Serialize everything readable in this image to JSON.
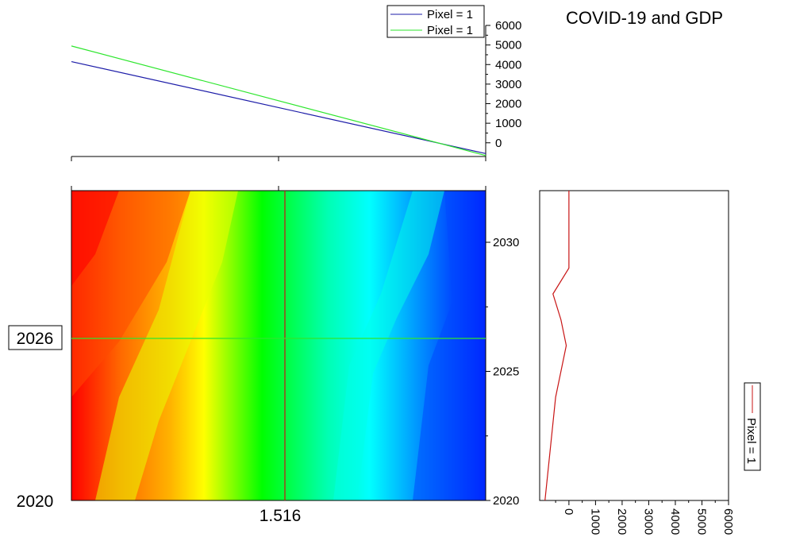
{
  "title": "COVID-19 and GDP",
  "colors": {
    "series1": "#1c1ca8",
    "series2": "#2ee62e",
    "vertical_cursor": "#c81414",
    "horizontal_cursor": "#2ee62e",
    "heatmap_scale": [
      "#ff0000",
      "#ff6a00",
      "#ffb400",
      "#ffff00",
      "#00ff00",
      "#00ffd2",
      "#00ffff",
      "#0000ff"
    ]
  },
  "chart_data": [
    {
      "type": "line",
      "panel": "top",
      "legend_position": "top-right",
      "series": [
        {
          "name": "Pixel = 1",
          "color": "#1c1ca8",
          "x": [
            0,
            1
          ],
          "y": [
            4150,
            -550
          ]
        },
        {
          "name": "Pixel = 1",
          "color": "#2ee62e",
          "x": [
            0,
            1
          ],
          "y": [
            4950,
            -650
          ]
        }
      ],
      "y_ticks": [
        "0",
        "1000",
        "2000",
        "3000",
        "4000",
        "5000",
        "6000"
      ],
      "ylim": [
        -700,
        6000
      ]
    },
    {
      "type": "heatmap",
      "panel": "main",
      "colormap": "rainbow red-yellow-green-cyan-blue",
      "x_cursor_label": "1.516",
      "y_cursor_label": "2026",
      "y_min_label": "2020",
      "y_ticks": [
        "2020",
        "2025",
        "2030"
      ],
      "ylim": [
        2020,
        2032
      ]
    },
    {
      "type": "line",
      "panel": "right",
      "legend_position": "right",
      "series": [
        {
          "name": "Pixel = 1",
          "color": "#c81414",
          "x": [
            -900,
            -500,
            -100,
            -300,
            -600,
            0,
            0,
            0
          ],
          "y": [
            2020,
            2024,
            2026,
            2027,
            2028,
            2029,
            2030,
            2032
          ]
        }
      ],
      "x_ticks": [
        "0",
        "1000",
        "2000",
        "3000",
        "4000",
        "5000",
        "6000"
      ],
      "xlim": [
        -1100,
        6000
      ]
    }
  ]
}
